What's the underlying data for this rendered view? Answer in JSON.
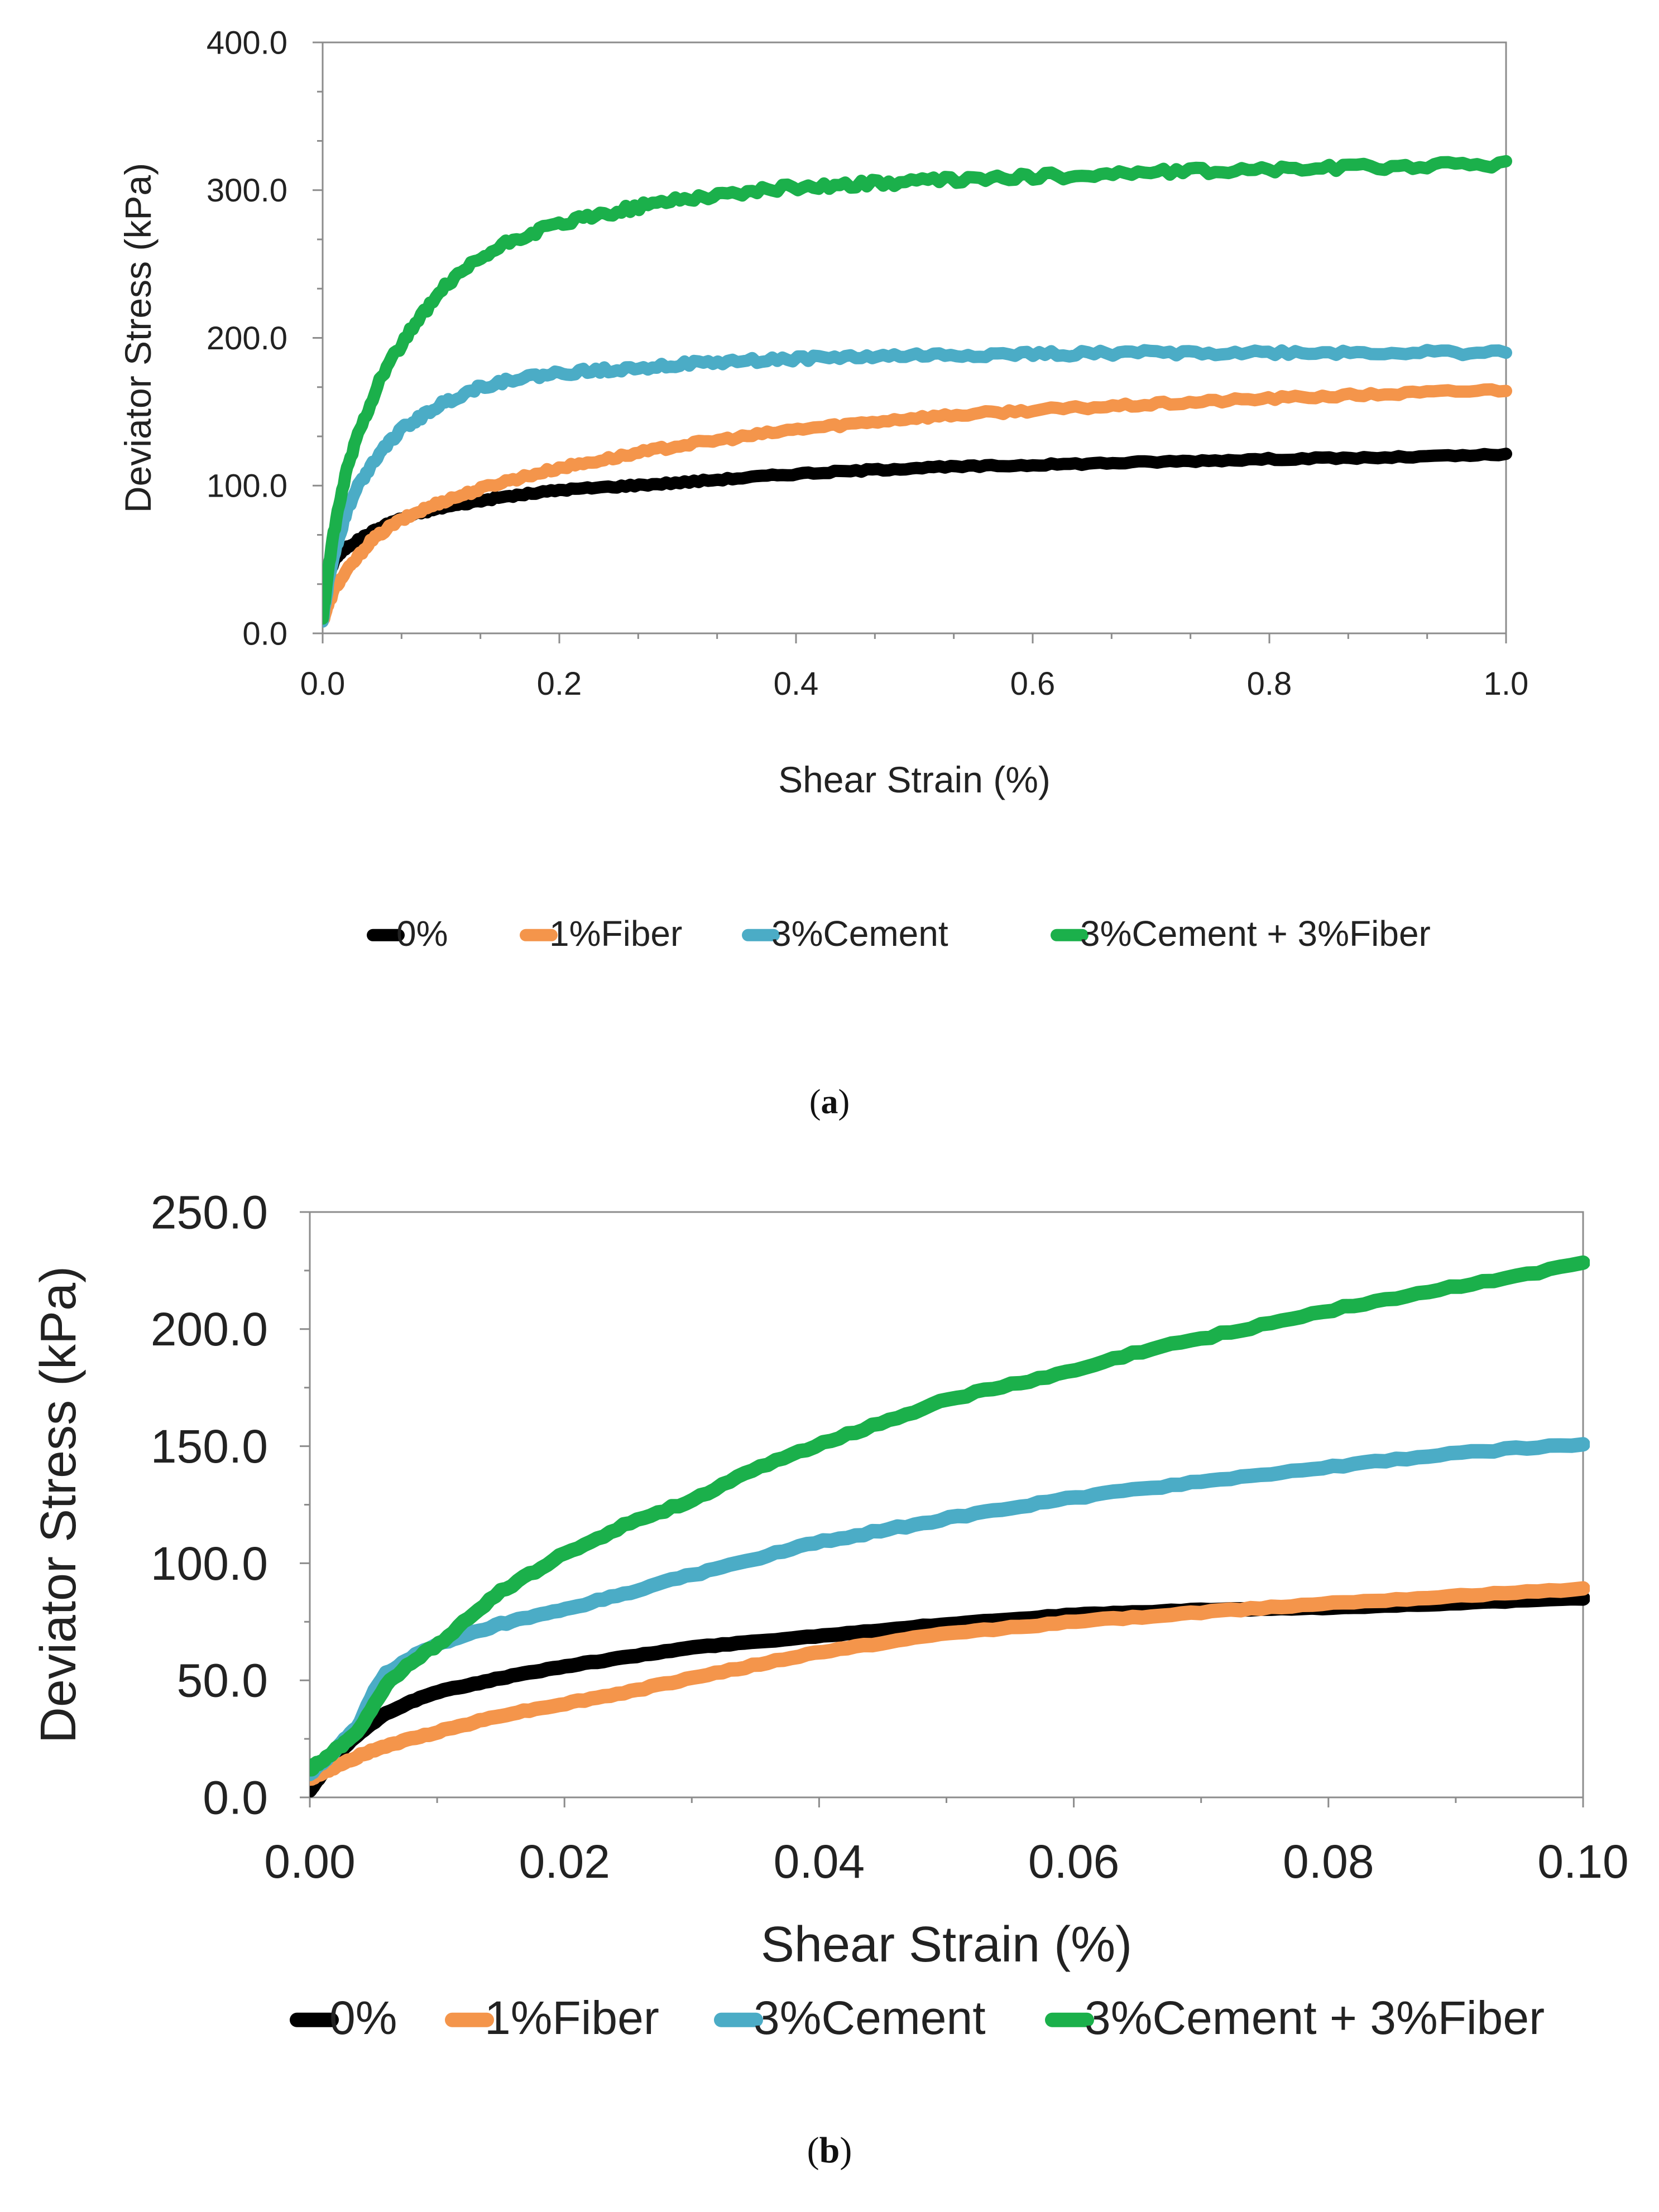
{
  "chart_data": [
    {
      "type": "line",
      "panel": "a",
      "caption": "a",
      "xlabel": "Shear Strain (%)",
      "ylabel": "Deviator Stress (kPa)",
      "xlim": [
        0,
        1.0
      ],
      "ylim": [
        0,
        400
      ],
      "xticks": [
        "0.0",
        "0.2",
        "0.4",
        "0.6",
        "0.8",
        "1.0"
      ],
      "yticks": [
        "0.0",
        "100.0",
        "200.0",
        "300.0",
        "400.0"
      ],
      "legend_position": "bottom",
      "series": [
        {
          "name": "0%",
          "color": "#000000",
          "x": [
            0,
            0.005,
            0.01,
            0.02,
            0.04,
            0.06,
            0.08,
            0.1,
            0.15,
            0.2,
            0.3,
            0.4,
            0.5,
            0.6,
            0.7,
            0.8,
            0.9,
            1.0
          ],
          "y": [
            15,
            38,
            50,
            58,
            68,
            76,
            81,
            85,
            92,
            97,
            102,
            108,
            112,
            114,
            116,
            118,
            119,
            121
          ]
        },
        {
          "name": "1%Fiber",
          "color": "#F4954B",
          "x": [
            0,
            0.005,
            0.01,
            0.02,
            0.04,
            0.06,
            0.08,
            0.1,
            0.15,
            0.2,
            0.3,
            0.4,
            0.5,
            0.6,
            0.7,
            0.8,
            0.9,
            1.0
          ],
          "y": [
            8,
            20,
            30,
            42,
            62,
            74,
            82,
            89,
            102,
            112,
            127,
            138,
            146,
            151,
            155,
            159,
            162,
            165
          ]
        },
        {
          "name": "3%Cement",
          "color": "#4BACC6",
          "x": [
            0,
            0.005,
            0.01,
            0.02,
            0.03,
            0.05,
            0.07,
            0.1,
            0.13,
            0.16,
            0.2,
            0.3,
            0.4,
            0.5,
            0.6,
            0.7,
            0.8,
            0.9,
            1.0
          ],
          "y": [
            8,
            35,
            55,
            82,
            100,
            125,
            140,
            155,
            166,
            172,
            176,
            182,
            186,
            188,
            189,
            190,
            190,
            190,
            190
          ]
        },
        {
          "name": "3%Cement + 3%Fiber",
          "color": "#1BB04B",
          "x": [
            0,
            0.005,
            0.01,
            0.02,
            0.03,
            0.05,
            0.07,
            0.1,
            0.13,
            0.16,
            0.2,
            0.25,
            0.3,
            0.4,
            0.5,
            0.6,
            0.7,
            0.8,
            0.9,
            1.0
          ],
          "y": [
            10,
            45,
            70,
            110,
            135,
            175,
            200,
            232,
            252,
            266,
            277,
            286,
            294,
            302,
            306,
            309,
            312,
            314,
            316,
            318
          ]
        }
      ]
    },
    {
      "type": "line",
      "panel": "b",
      "caption": "b",
      "xlabel": "Shear Strain (%)",
      "ylabel": "Deviator Stress (kPa)",
      "xlim": [
        0,
        0.1
      ],
      "ylim": [
        0,
        250
      ],
      "xticks": [
        "0.00",
        "0.02",
        "0.04",
        "0.06",
        "0.08",
        "0.10"
      ],
      "yticks": [
        "0.0",
        "50.0",
        "100.0",
        "150.0",
        "200.0",
        "250.0"
      ],
      "legend_position": "bottom",
      "series": [
        {
          "name": "0%",
          "color": "#000000",
          "x": [
            0,
            0.002,
            0.004,
            0.006,
            0.008,
            0.01,
            0.015,
            0.02,
            0.025,
            0.03,
            0.04,
            0.05,
            0.06,
            0.07,
            0.08,
            0.09,
            0.1
          ],
          "y": [
            3,
            18,
            28,
            36,
            41,
            45,
            51,
            56,
            60,
            64,
            69,
            74,
            78,
            80,
            81,
            83,
            85
          ]
        },
        {
          "name": "1%Fiber",
          "color": "#F4954B",
          "x": [
            0,
            0.002,
            0.004,
            0.006,
            0.008,
            0.01,
            0.015,
            0.02,
            0.025,
            0.03,
            0.04,
            0.05,
            0.06,
            0.07,
            0.08,
            0.09,
            0.1
          ],
          "y": [
            8,
            13,
            18,
            22,
            25,
            28,
            35,
            40,
            45,
            51,
            62,
            70,
            75,
            79,
            83,
            86,
            89
          ]
        },
        {
          "name": "3%Cement",
          "color": "#4BACC6",
          "x": [
            0,
            0.002,
            0.004,
            0.005,
            0.006,
            0.008,
            0.01,
            0.015,
            0.02,
            0.03,
            0.04,
            0.05,
            0.06,
            0.07,
            0.08,
            0.09,
            0.1
          ],
          "y": [
            10,
            20,
            32,
            45,
            53,
            60,
            65,
            74,
            80,
            95,
            109,
            119,
            128,
            135,
            141,
            147,
            151
          ]
        },
        {
          "name": "3%Cement + 3%Fiber",
          "color": "#1BB04B",
          "x": [
            0,
            0.002,
            0.004,
            0.006,
            0.008,
            0.01,
            0.015,
            0.02,
            0.025,
            0.03,
            0.035,
            0.04,
            0.045,
            0.05,
            0.06,
            0.065,
            0.07,
            0.08,
            0.09,
            0.1
          ],
          "y": [
            12,
            20,
            30,
            48,
            58,
            65,
            88,
            104,
            117,
            127,
            140,
            151,
            160,
            170,
            182,
            190,
            196,
            208,
            218,
            228
          ]
        }
      ]
    }
  ]
}
